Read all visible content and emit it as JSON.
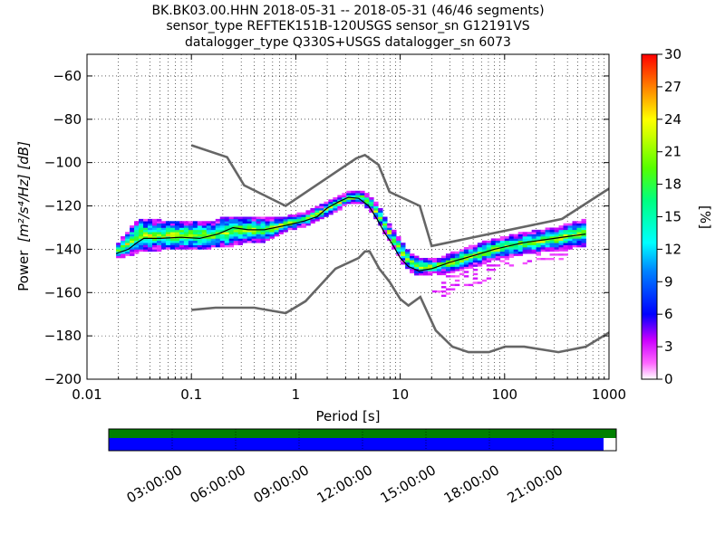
{
  "chart_data": [
    {
      "type": "heatmap",
      "title_lines": [
        "BK.BK03.00.HHN   2018-05-31 -- 2018-05-31  (46/46 segments)",
        "sensor_type REFTEK151B-120USGS sensor_sn G12191VS",
        "datalogger_type Q330S+USGS datalogger_sn 6073"
      ],
      "xlabel": "Period [s]",
      "ylabel_text": "Power",
      "ylabel_units": "[m²/s⁴/Hz] [dB]",
      "xscale": "log",
      "xlim": [
        0.01,
        1000
      ],
      "ylim": [
        -200,
        -50
      ],
      "x_ticks": [
        0.01,
        0.1,
        1,
        10,
        100,
        1000
      ],
      "x_tick_labels": [
        "0.01",
        "0.1",
        "1",
        "10",
        "100",
        "1000"
      ],
      "y_ticks": [
        -200,
        -180,
        -160,
        -140,
        -120,
        -100,
        -80,
        -60
      ],
      "y_tick_labels": [
        "−200",
        "−180",
        "−160",
        "−140",
        "−120",
        "−100",
        "−80",
        "−60"
      ],
      "grid": true,
      "colorbar": {
        "label": "[%]",
        "range": [
          0,
          30
        ],
        "ticks": [
          0,
          3,
          6,
          9,
          12,
          15,
          18,
          21,
          24,
          27,
          30
        ],
        "tick_labels": [
          "0",
          "3",
          "6",
          "9",
          "12",
          "15",
          "18",
          "21",
          "24",
          "27",
          "30"
        ]
      },
      "noise_model_high": [
        [
          0.1,
          -92
        ],
        [
          0.22,
          -97.5
        ],
        [
          0.32,
          -110.5
        ],
        [
          0.8,
          -120
        ],
        [
          3.8,
          -98
        ],
        [
          4.6,
          -96.5
        ],
        [
          6.2,
          -101
        ],
        [
          7.9,
          -113.5
        ],
        [
          15.4,
          -120
        ],
        [
          20,
          -138.5
        ],
        [
          354.8,
          -126
        ],
        [
          1000,
          -112
        ]
      ],
      "noise_model_low": [
        [
          0.1,
          -168
        ],
        [
          0.17,
          -167
        ],
        [
          0.4,
          -167
        ],
        [
          0.8,
          -169.5
        ],
        [
          1.24,
          -164
        ],
        [
          2.4,
          -149
        ],
        [
          4,
          -144
        ],
        [
          4.6,
          -141
        ],
        [
          5.1,
          -141
        ],
        [
          6.3,
          -149
        ],
        [
          7.9,
          -155
        ],
        [
          10,
          -163
        ],
        [
          12,
          -166
        ],
        [
          15.6,
          -162
        ],
        [
          21.9,
          -177.5
        ],
        [
          31.6,
          -185
        ],
        [
          45,
          -187.5
        ],
        [
          70.8,
          -187.5
        ],
        [
          101,
          -185
        ],
        [
          154,
          -185
        ],
        [
          328,
          -187.5
        ],
        [
          600,
          -185
        ],
        [
          1000,
          -178.5
        ]
      ],
      "mean_psd": [
        [
          0.019,
          -142
        ],
        [
          0.025,
          -140
        ],
        [
          0.03,
          -137
        ],
        [
          0.035,
          -135
        ],
        [
          0.05,
          -135
        ],
        [
          0.08,
          -134.5
        ],
        [
          0.12,
          -135
        ],
        [
          0.18,
          -133
        ],
        [
          0.25,
          -130
        ],
        [
          0.35,
          -131
        ],
        [
          0.5,
          -131
        ],
        [
          0.8,
          -129
        ],
        [
          1.2,
          -127
        ],
        [
          1.6,
          -125
        ],
        [
          2,
          -121
        ],
        [
          2.6,
          -118
        ],
        [
          3.2,
          -116
        ],
        [
          4,
          -116.5
        ],
        [
          5,
          -120
        ],
        [
          6,
          -126
        ],
        [
          7,
          -132
        ],
        [
          8.5,
          -138
        ],
        [
          10,
          -144
        ],
        [
          12,
          -148
        ],
        [
          15,
          -150
        ],
        [
          20,
          -149
        ],
        [
          30,
          -146
        ],
        [
          50,
          -143
        ],
        [
          80,
          -140
        ],
        [
          150,
          -137
        ],
        [
          300,
          -135
        ],
        [
          600,
          -133
        ]
      ],
      "psd_spread_model": [
        [
          0.019,
          -144,
          -138
        ],
        [
          0.03,
          -141,
          -127
        ],
        [
          0.05,
          -140,
          -128
        ],
        [
          0.1,
          -140,
          -128
        ],
        [
          0.15,
          -139,
          -129
        ],
        [
          0.2,
          -139,
          -126
        ],
        [
          0.3,
          -137,
          -126
        ],
        [
          0.5,
          -136,
          -127
        ],
        [
          0.8,
          -131,
          -126
        ],
        [
          1.2,
          -129,
          -124
        ],
        [
          2,
          -124,
          -119
        ],
        [
          3,
          -119,
          -115
        ],
        [
          4,
          -118,
          -114
        ],
        [
          5,
          -122,
          -117
        ],
        [
          6,
          -128,
          -122
        ],
        [
          8,
          -138,
          -132
        ],
        [
          10,
          -146,
          -138
        ],
        [
          12,
          -150,
          -143
        ],
        [
          15,
          -152,
          -145
        ],
        [
          20,
          -151,
          -146
        ],
        [
          30,
          -150,
          -143
        ],
        [
          50,
          -147,
          -139
        ],
        [
          100,
          -143,
          -135
        ],
        [
          300,
          -140,
          -131
        ],
        [
          600,
          -138,
          -127
        ]
      ],
      "psd_low_tail_model": [
        [
          20,
          -161
        ],
        [
          25,
          -162
        ],
        [
          30,
          -159
        ],
        [
          40,
          -157
        ],
        [
          60,
          -155
        ],
        [
          80,
          -150
        ],
        [
          120,
          -147
        ],
        [
          200,
          -145
        ],
        [
          400,
          -145
        ]
      ],
      "coverage": {
        "time_ticks": [
          "03:00:00",
          "06:00:00",
          "09:00:00",
          "12:00:00",
          "15:00:00",
          "18:00:00",
          "21:00:00"
        ],
        "time_range_hours": [
          0,
          24
        ],
        "data_coverage_end_hour": 23.4,
        "colors": {
          "overview": "#008000",
          "data": "#0000ff"
        }
      }
    }
  ]
}
